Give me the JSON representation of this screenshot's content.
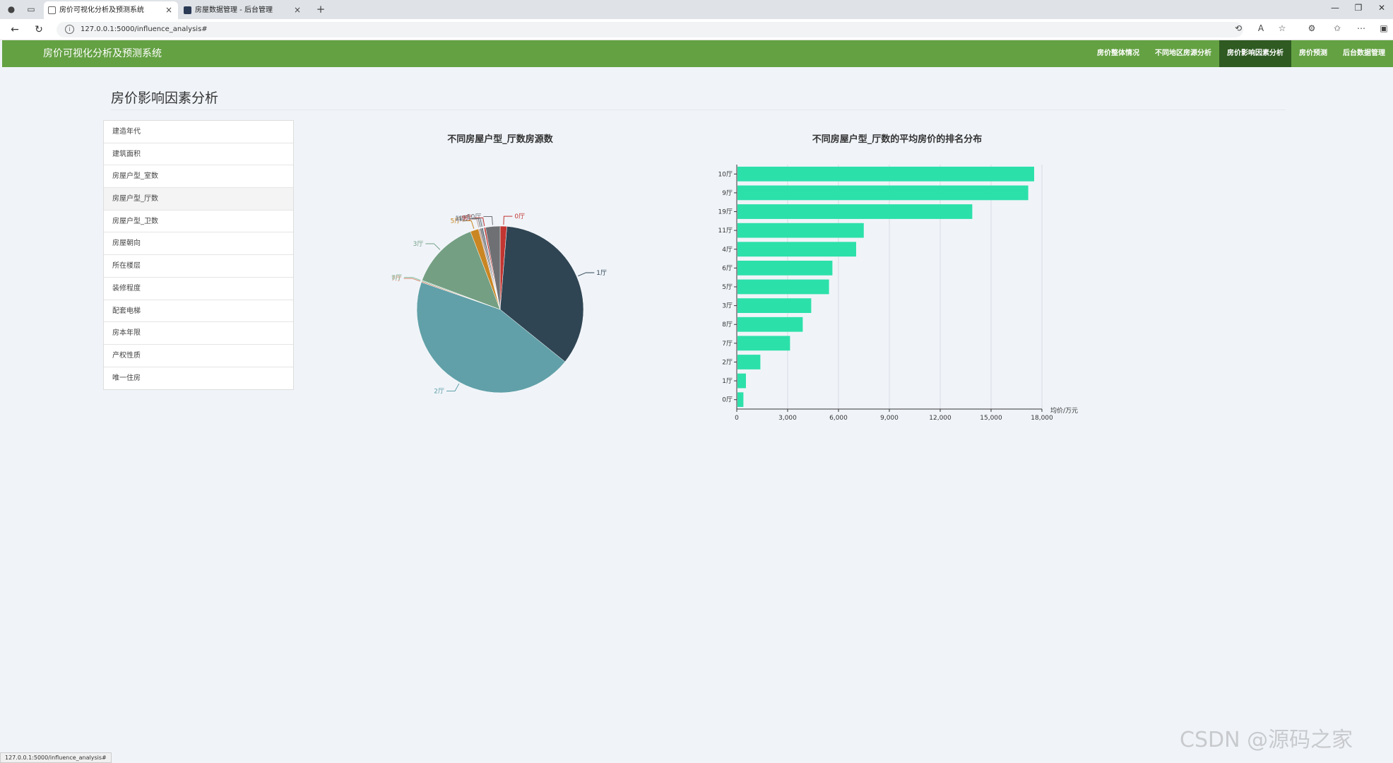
{
  "browser": {
    "tabs": [
      {
        "title": "房价可视化分析及预测系统",
        "active": true
      },
      {
        "title": "房屋数据管理 - 后台管理",
        "active": false
      }
    ],
    "url": "127.0.0.1:5000/influence_analysis#",
    "status_url": "127.0.0.1:5000/influence_analysis#"
  },
  "header": {
    "brand": "房价可视化分析及预测系统",
    "nav": [
      "房价整体情况",
      "不同地区房源分析",
      "房价影响因素分析",
      "房价预测",
      "后台数据管理"
    ],
    "active_index": 2,
    "color": "#64a143"
  },
  "page": {
    "title": "房价影响因素分析"
  },
  "sidebar": {
    "items": [
      "建造年代",
      "建筑面积",
      "房屋户型_室数",
      "房屋户型_厅数",
      "房屋户型_卫数",
      "房屋朝向",
      "所在楼层",
      "装修程度",
      "配套电梯",
      "房本年限",
      "产权性质",
      "唯一住房"
    ],
    "active_index": 3
  },
  "chart_data": [
    {
      "type": "pie",
      "title": "不同房屋户型_厅数房源数",
      "categories": [
        "0厅",
        "1厅",
        "2厅",
        "7厅",
        "8厅",
        "3厅",
        "5厅",
        "6厅",
        "4厅",
        "11厅",
        "19厅",
        "9厅",
        "10厅"
      ],
      "values": [
        1.3,
        34.5,
        44.5,
        0.2,
        0.2,
        13.5,
        1.6,
        0.3,
        0.3,
        0.3,
        0.2,
        0.3,
        2.8
      ],
      "colors": [
        "#c23531",
        "#2f4554",
        "#61a0a8",
        "#d48265",
        "#91c7ae",
        "#749f83",
        "#ca8622",
        "#bda29a",
        "#6e7074",
        "#546570",
        "#c4ccd3",
        "#c23531",
        "#6e7074"
      ]
    },
    {
      "type": "bar",
      "orientation": "horizontal",
      "title": "不同房屋户型_厅数的平均房价的排名分布",
      "categories": [
        "10厅",
        "9厅",
        "19厅",
        "11厅",
        "4厅",
        "6厅",
        "5厅",
        "3厅",
        "8厅",
        "7厅",
        "2厅",
        "1厅",
        "0厅"
      ],
      "values": [
        17500,
        17150,
        13850,
        7450,
        7000,
        5600,
        5400,
        4350,
        3850,
        3100,
        1350,
        500,
        350
      ],
      "xlabel": "均价/万元",
      "xlim": [
        0,
        18000
      ],
      "xticks": [
        "0",
        "3,000",
        "6,000",
        "9,000",
        "12,000",
        "15,000",
        "18,000"
      ],
      "color": "#2ce0aa"
    }
  ],
  "watermark": "CSDN @源码之家"
}
